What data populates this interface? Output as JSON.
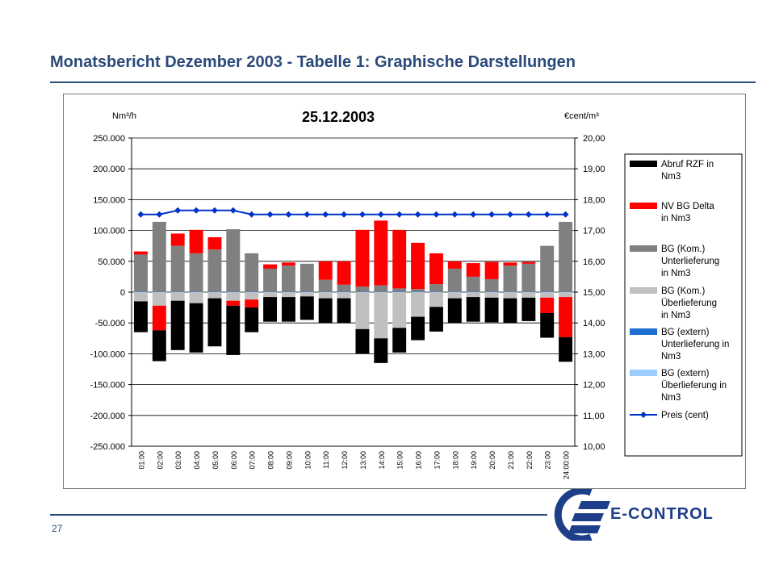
{
  "slide": {
    "title": "Monatsbericht Dezember 2003 - Tabelle 1: Graphische Darstellungen",
    "page_number": "27",
    "logo_text": "E-CONTROL"
  },
  "chart_data": {
    "type": "bar",
    "title": "25.12.2003",
    "ylabel_left": "Nm³/h",
    "ylabel_right": "€cent/m³",
    "ylim_left": [
      -250000,
      250000
    ],
    "ylim_right": [
      10,
      20
    ],
    "yticks_left": [
      "250.000",
      "200.000",
      "150.000",
      "100.000",
      "50.000",
      "0",
      "-50.000",
      "-100.000",
      "-150.000",
      "-200.000",
      "-250.000"
    ],
    "yticks_right": [
      "20,00",
      "19,00",
      "18,00",
      "17,00",
      "16,00",
      "15,00",
      "14,00",
      "13,00",
      "12,00",
      "11,00",
      "10,00"
    ],
    "categories": [
      "01:00",
      "02:00",
      "03:00",
      "04:00",
      "05:00",
      "06:00",
      "07:00",
      "08:00",
      "09:00",
      "10:00",
      "11:00",
      "12:00",
      "13:00",
      "14:00",
      "15:00",
      "16:00",
      "17:00",
      "18:00",
      "19:00",
      "20:00",
      "21:00",
      "22:00",
      "23:00",
      "24:00:00"
    ],
    "legend_position": "right",
    "grid": true,
    "series": [
      {
        "name": "Abruf RZF in Nm3",
        "color": "#000000",
        "stack": "neg",
        "values": [
          -50000,
          -50000,
          -80000,
          -80000,
          -78000,
          -80000,
          -40000,
          -40000,
          -40000,
          -38000,
          -40000,
          -40000,
          -40000,
          -40000,
          -40000,
          -38000,
          -40000,
          -40000,
          -40000,
          -40000,
          -40000,
          -38000,
          -40000,
          -40000
        ]
      },
      {
        "name": "NV BG Delta in Nm3",
        "color": "#ff0000",
        "stack": "mixed",
        "values": [
          5000,
          -40000,
          20000,
          38000,
          20000,
          -8000,
          -13000,
          7000,
          5000,
          0,
          30000,
          38000,
          92000,
          105000,
          95000,
          75000,
          50000,
          12000,
          22000,
          28000,
          5000,
          3000,
          -25000,
          -65000
        ]
      },
      {
        "name": "BG (Kom.) Unterlieferung in Nm3",
        "color": "#808080",
        "stack": "pos",
        "values": [
          60000,
          113000,
          74000,
          62000,
          68000,
          101000,
          62000,
          37000,
          42000,
          45000,
          19000,
          11000,
          8000,
          10000,
          5000,
          4000,
          12000,
          37000,
          24000,
          20000,
          42000,
          45000,
          74000,
          113000
        ]
      },
      {
        "name": "BG (Kom.) Überlieferung in Nm3",
        "color": "#c0c0c0",
        "stack": "neg",
        "values": [
          -15000,
          -22000,
          -14000,
          -18000,
          -10000,
          -14000,
          -12000,
          -8000,
          -8000,
          -7000,
          -10000,
          -10000,
          -60000,
          -75000,
          -58000,
          -40000,
          -24000,
          -10000,
          -8000,
          -9000,
          -10000,
          -9000,
          -9000,
          -8000
        ]
      },
      {
        "name": "BG (extern) Unterlieferung in Nm3",
        "color": "#1f6fd1",
        "stack": "pos",
        "values": [
          1000,
          1000,
          1000,
          1000,
          1000,
          1000,
          1000,
          1000,
          1000,
          1000,
          1000,
          1000,
          1000,
          1000,
          1000,
          1000,
          1000,
          1000,
          1000,
          1000,
          1000,
          1000,
          1000,
          1000
        ]
      },
      {
        "name": "BG (extern) Überlieferung in Nm3",
        "color": "#99ccff",
        "stack": "neg",
        "values": [
          0,
          0,
          0,
          0,
          0,
          0,
          0,
          0,
          0,
          0,
          0,
          0,
          0,
          0,
          0,
          0,
          0,
          0,
          0,
          0,
          0,
          0,
          0,
          0
        ]
      },
      {
        "name": "Preis (cent)",
        "color": "#0033cc",
        "type": "line",
        "axis": "right",
        "values": [
          17.52,
          17.52,
          17.65,
          17.65,
          17.65,
          17.65,
          17.52,
          17.52,
          17.52,
          17.52,
          17.52,
          17.52,
          17.52,
          17.52,
          17.52,
          17.52,
          17.52,
          17.52,
          17.52,
          17.52,
          17.52,
          17.52,
          17.52,
          17.52
        ]
      }
    ]
  }
}
